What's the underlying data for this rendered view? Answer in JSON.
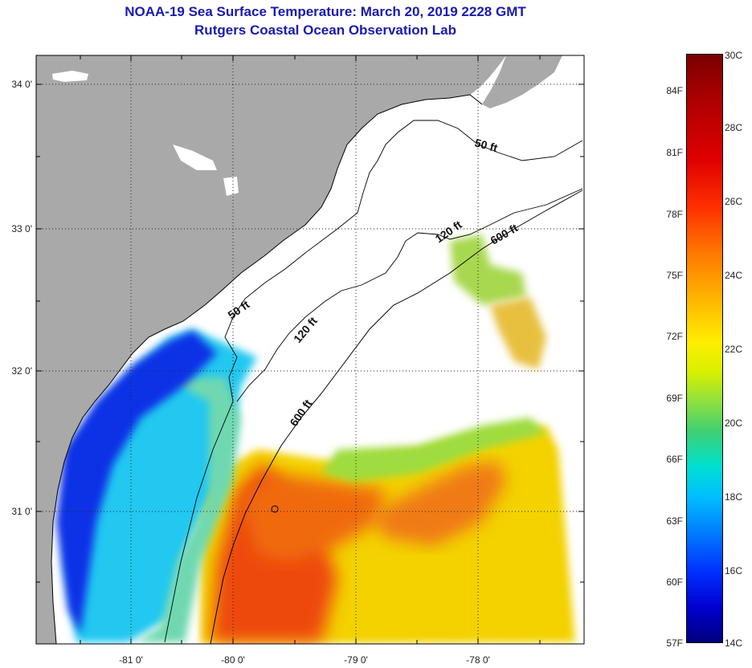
{
  "title": {
    "line1": "NOAA-19 Sea Surface Temperature:  March 20, 2019 2228 GMT",
    "line2": "Rutgers Coastal Ocean Observation Lab"
  },
  "axes": {
    "latitude_labels": [
      "34 0'",
      "33 0'",
      "32 0'",
      "31 0'"
    ],
    "longitude_labels": [
      "-81 0'",
      "-80 0'",
      "-79 0'",
      "-78 0'"
    ]
  },
  "contours": {
    "labels": [
      "50 ft",
      "50 ft",
      "120 ft",
      "120 ft",
      "600 ft",
      "600 ft"
    ]
  },
  "colorbar": {
    "fahrenheit": [
      "84F",
      "81F",
      "78F",
      "75F",
      "72F",
      "69F",
      "66F",
      "63F",
      "60F",
      "57F"
    ],
    "celsius": [
      "30C",
      "28C",
      "26C",
      "24C",
      "22C",
      "20C",
      "18C",
      "16C",
      "14C"
    ]
  },
  "colors": {
    "land": "#a9a9a9",
    "title": "#1a1ab0",
    "cold": "#0a2ee0",
    "cool": "#00d8f0",
    "warm": "#f5d000",
    "hot": "#ef4410"
  }
}
